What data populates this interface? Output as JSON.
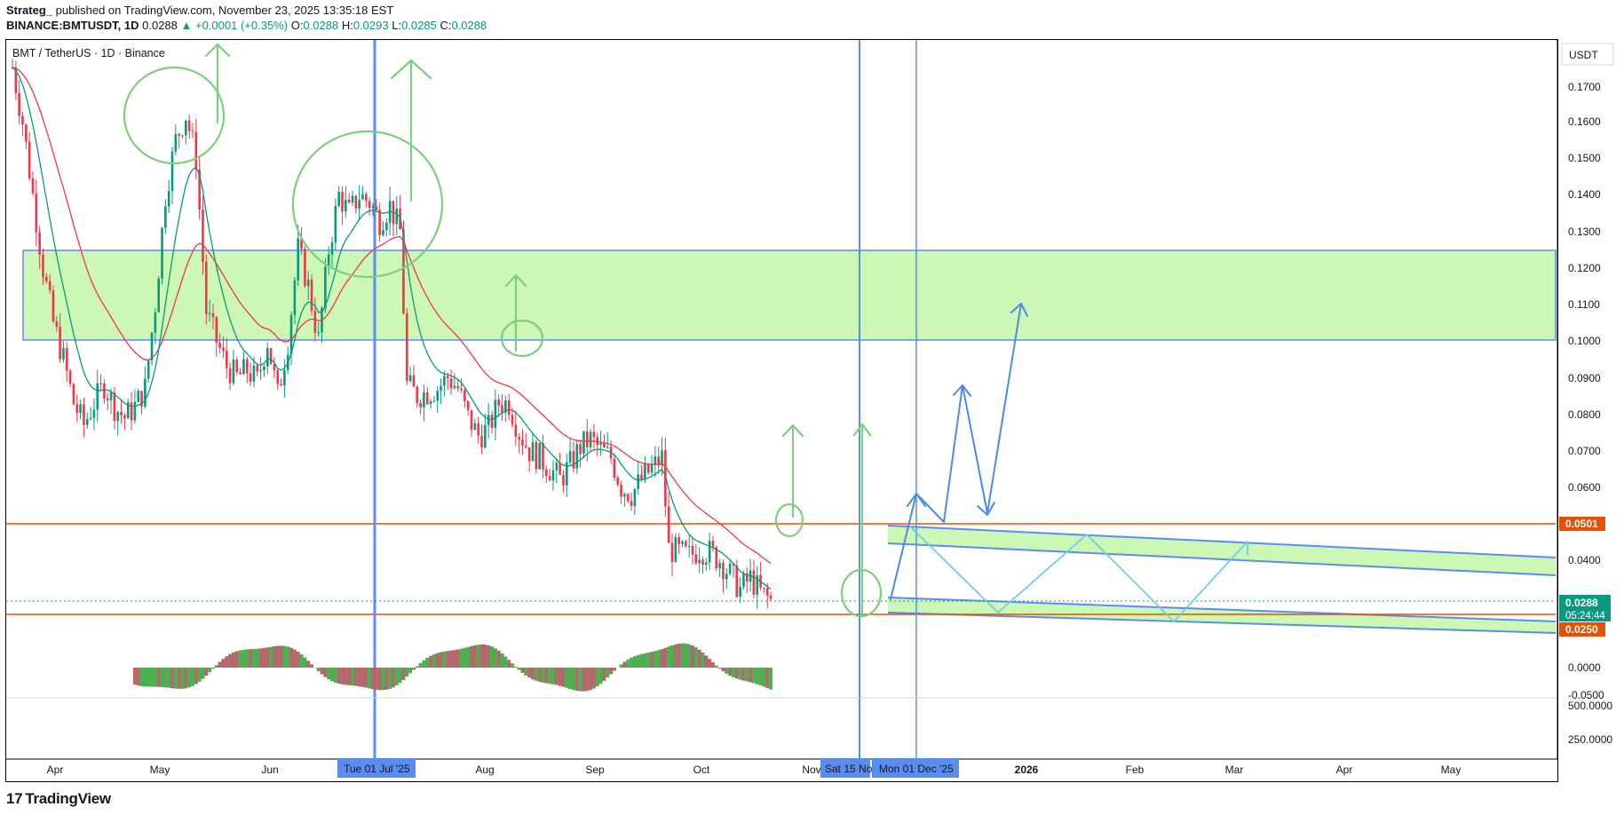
{
  "header": {
    "publisher": "Strateg_",
    "published_text": "published on TradingView.com, November 23, 2025 13:35:18 EST",
    "symbol": "BINANCE:BMTUSDT, 1D",
    "last": "0.0288",
    "change": "▲ +0.0001 (+0.35%)",
    "o_label": "O:",
    "o": "0.0288",
    "h_label": "H:",
    "h": "0.0293",
    "l_label": "L:",
    "l": "0.0285",
    "c_label": "C:",
    "c": "0.0288"
  },
  "legend_title": "BMT / TetherUS · 1D · Binance",
  "currency": "USDT",
  "footer": {
    "logo": "TradingView"
  },
  "colors": {
    "up": "#089981",
    "down": "#f23645",
    "zone": "#ccf7b4",
    "blue": "#2962ff",
    "orange": "#e65100",
    "price_badge": "#089981"
  },
  "chart_data": {
    "type": "candlestick",
    "title": "BMT / TetherUS · 1D · Binance",
    "y_axis": {
      "ticks": [
        "0.1700",
        "0.1600",
        "0.1500",
        "0.1400",
        "0.1300",
        "0.1200",
        "0.1100",
        "0.1000",
        "0.0900",
        "0.0800",
        "0.0700",
        "0.0600",
        "0.0400",
        "0.0000",
        "-0.0500",
        "500.0000",
        "250.0000"
      ],
      "range": [
        0.0195,
        0.1755
      ]
    },
    "x_axis": {
      "ticks": [
        "Apr",
        "May",
        "Jun",
        "Aug",
        "Sep",
        "Oct",
        "Nov",
        "2026",
        "Feb",
        "Mar",
        "Apr",
        "May"
      ],
      "highlight_labels": [
        "Tue 01 Jul '25",
        "Sat 15 Nov",
        "Mon 01 Dec '25"
      ]
    },
    "price_badges": [
      {
        "value": "0.0501",
        "color": "#e65100"
      },
      {
        "value": "0.0288",
        "countdown": "05:24:44",
        "color": "#089981"
      },
      {
        "value": "0.0250",
        "color": "#e65100"
      }
    ],
    "horizontal_levels": {
      "resistance_zone": [
        0.1,
        0.125
      ],
      "orange_lines": [
        0.0501,
        0.025
      ],
      "last_price": 0.0288
    },
    "close_series": [
      {
        "t": 0,
        "c": 0.175
      },
      {
        "t": 3,
        "c": 0.16
      },
      {
        "t": 6,
        "c": 0.14
      },
      {
        "t": 9,
        "c": 0.12
      },
      {
        "t": 12,
        "c": 0.105
      },
      {
        "t": 15,
        "c": 0.095
      },
      {
        "t": 18,
        "c": 0.083
      },
      {
        "t": 21,
        "c": 0.077
      },
      {
        "t": 24,
        "c": 0.083
      },
      {
        "t": 27,
        "c": 0.088
      },
      {
        "t": 30,
        "c": 0.082
      },
      {
        "t": 33,
        "c": 0.079
      },
      {
        "t": 36,
        "c": 0.082
      },
      {
        "t": 39,
        "c": 0.087
      },
      {
        "t": 42,
        "c": 0.11
      },
      {
        "t": 45,
        "c": 0.14
      },
      {
        "t": 48,
        "c": 0.155
      },
      {
        "t": 51,
        "c": 0.162
      },
      {
        "t": 54,
        "c": 0.15
      },
      {
        "t": 57,
        "c": 0.108
      },
      {
        "t": 60,
        "c": 0.1
      },
      {
        "t": 63,
        "c": 0.093
      },
      {
        "t": 66,
        "c": 0.09
      },
      {
        "t": 69,
        "c": 0.092
      },
      {
        "t": 72,
        "c": 0.089
      },
      {
        "t": 75,
        "c": 0.1
      },
      {
        "t": 78,
        "c": 0.085
      },
      {
        "t": 81,
        "c": 0.1
      },
      {
        "t": 84,
        "c": 0.125
      },
      {
        "t": 87,
        "c": 0.115
      },
      {
        "t": 90,
        "c": 0.1
      },
      {
        "t": 93,
        "c": 0.125
      },
      {
        "t": 96,
        "c": 0.14
      },
      {
        "t": 99,
        "c": 0.135
      },
      {
        "t": 102,
        "c": 0.14
      },
      {
        "t": 105,
        "c": 0.138
      },
      {
        "t": 108,
        "c": 0.133
      },
      {
        "t": 111,
        "c": 0.137
      },
      {
        "t": 114,
        "c": 0.13
      },
      {
        "t": 116,
        "c": 0.088
      },
      {
        "t": 119,
        "c": 0.085
      },
      {
        "t": 122,
        "c": 0.086
      },
      {
        "t": 125,
        "c": 0.087
      },
      {
        "t": 128,
        "c": 0.09
      },
      {
        "t": 131,
        "c": 0.087
      },
      {
        "t": 134,
        "c": 0.079
      },
      {
        "t": 137,
        "c": 0.074
      },
      {
        "t": 140,
        "c": 0.076
      },
      {
        "t": 143,
        "c": 0.083
      },
      {
        "t": 146,
        "c": 0.083
      },
      {
        "t": 149,
        "c": 0.075
      },
      {
        "t": 152,
        "c": 0.07
      },
      {
        "t": 155,
        "c": 0.068
      },
      {
        "t": 158,
        "c": 0.065
      },
      {
        "t": 161,
        "c": 0.062
      },
      {
        "t": 164,
        "c": 0.066
      },
      {
        "t": 167,
        "c": 0.071
      },
      {
        "t": 170,
        "c": 0.073
      },
      {
        "t": 173,
        "c": 0.07
      },
      {
        "t": 176,
        "c": 0.068
      },
      {
        "t": 179,
        "c": 0.06
      },
      {
        "t": 182,
        "c": 0.058
      },
      {
        "t": 185,
        "c": 0.062
      },
      {
        "t": 188,
        "c": 0.065
      },
      {
        "t": 191,
        "c": 0.068
      },
      {
        "t": 193,
        "c": 0.043
      },
      {
        "t": 196,
        "c": 0.042
      },
      {
        "t": 199,
        "c": 0.041
      },
      {
        "t": 202,
        "c": 0.043
      },
      {
        "t": 205,
        "c": 0.042
      },
      {
        "t": 208,
        "c": 0.04
      },
      {
        "t": 211,
        "c": 0.036
      },
      {
        "t": 214,
        "c": 0.032
      },
      {
        "t": 217,
        "c": 0.035
      },
      {
        "t": 220,
        "c": 0.031
      },
      {
        "t": 223,
        "c": 0.0288
      }
    ],
    "indicators": {
      "ema_red_visible": true,
      "ema_green_visible": true,
      "oscillator_histogram_visible": true
    },
    "grid": false
  }
}
